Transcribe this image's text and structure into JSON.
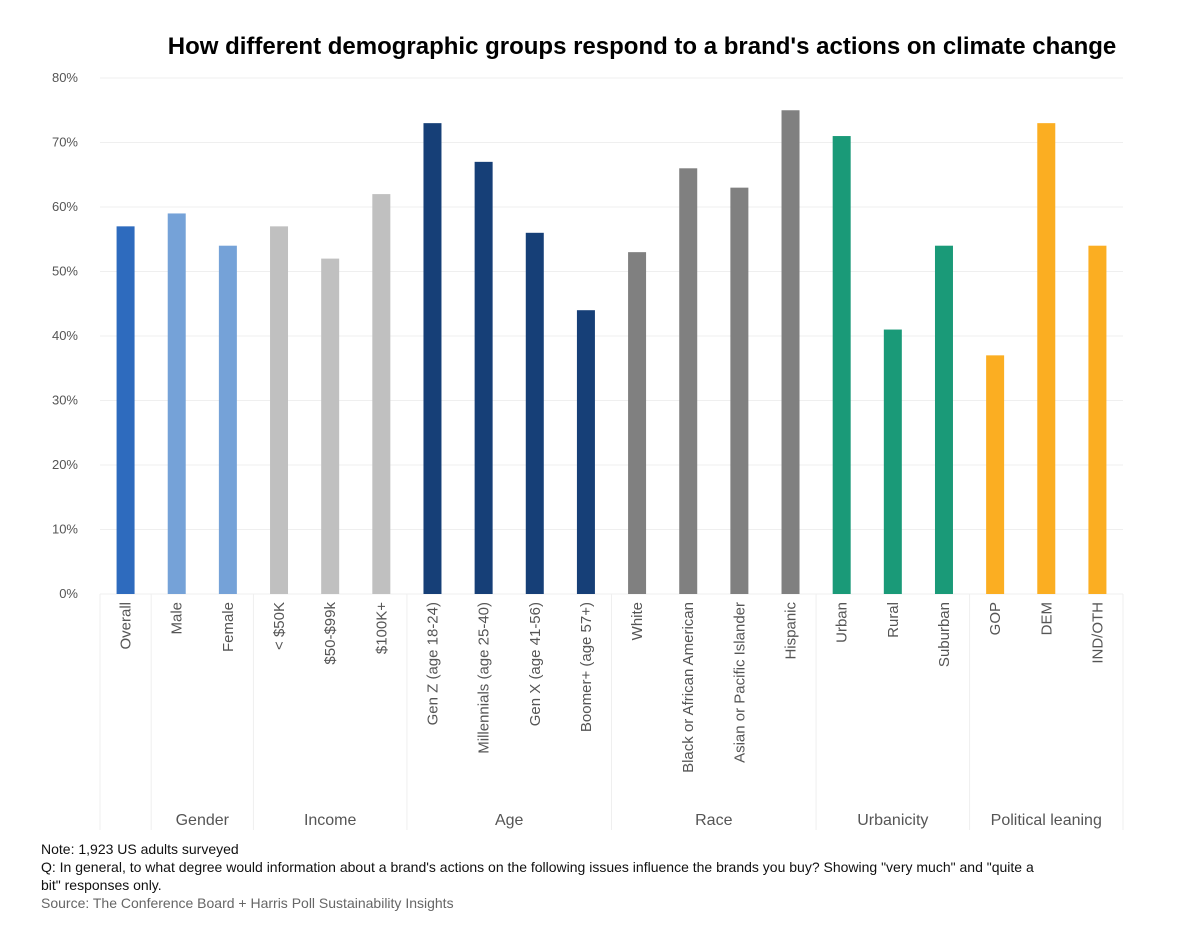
{
  "chart_data": {
    "type": "bar",
    "title": "How different demographic groups respond to a brand's actions on climate change",
    "xlabel": "",
    "ylabel": "",
    "ylim": [
      0,
      0.8
    ],
    "y_ticks": [
      "0%",
      "10%",
      "20%",
      "30%",
      "40%",
      "50%",
      "60%",
      "70%",
      "80%"
    ],
    "grid": true,
    "legend": "none",
    "categories": [
      "Overall",
      "Male",
      "Female",
      "< $50K",
      "$50-$99k",
      "$100K+",
      "Gen Z (age 18-24)",
      "Millennials (age 25-40)",
      "Gen X (age 41-56)",
      "Boomer+ (age 57+)",
      "White",
      "Black or African American",
      "Asian or Pacific Islander",
      "Hispanic",
      "Urban",
      "Rural",
      "Suburban",
      "GOP",
      "DEM",
      "IND/OTH"
    ],
    "values": [
      0.57,
      0.59,
      0.54,
      0.57,
      0.52,
      0.62,
      0.73,
      0.67,
      0.56,
      0.44,
      0.53,
      0.66,
      0.63,
      0.75,
      0.71,
      0.41,
      0.54,
      0.37,
      0.73,
      0.54
    ],
    "groups": [
      {
        "name": "",
        "count": 1,
        "color": "#2E6BBE"
      },
      {
        "name": "Gender",
        "count": 2,
        "color": "#75A2D8"
      },
      {
        "name": "Income",
        "count": 3,
        "color": "#C0C0C0"
      },
      {
        "name": "Age",
        "count": 4,
        "color": "#163F77"
      },
      {
        "name": "Race",
        "count": 4,
        "color": "#808080"
      },
      {
        "name": "Urbanicity",
        "count": 3,
        "color": "#1A9A78"
      },
      {
        "name": "Political leaning",
        "count": 3,
        "color": "#FBAE22"
      }
    ]
  },
  "notes": {
    "note_label": "Note",
    "note_text": ": 1,923 US adults surveyed",
    "question": "Q: In general, to what degree would information about a brand's actions on the following issues influence the brands you buy? Showing \"very much\" and \"quite a bit\" responses only.",
    "source": "Source: The Conference Board + Harris Poll Sustainability Insights"
  }
}
